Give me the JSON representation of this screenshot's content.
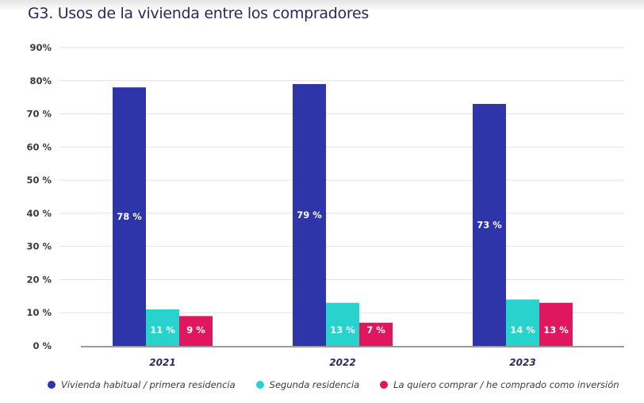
{
  "chart_data": {
    "type": "bar",
    "title": "G3. Usos de la vivienda entre los compradores",
    "xlabel": "",
    "ylabel": "",
    "ylim": [
      0,
      90
    ],
    "grid": true,
    "legend_position": "bottom",
    "categories": [
      "2021",
      "2022",
      "2023"
    ],
    "y_ticks": [
      {
        "value": 0,
        "label": "0 %"
      },
      {
        "value": 10,
        "label": "10 %"
      },
      {
        "value": 20,
        "label": "20 %"
      },
      {
        "value": 30,
        "label": "30 %"
      },
      {
        "value": 40,
        "label": "40 %"
      },
      {
        "value": 50,
        "label": "50 %"
      },
      {
        "value": 60,
        "label": "60 %"
      },
      {
        "value": 70,
        "label": "70 %"
      },
      {
        "value": 80,
        "label": "80%"
      },
      {
        "value": 90,
        "label": "90%"
      }
    ],
    "series": [
      {
        "name": "Vivienda habitual / primera residencia",
        "color": "#2e35a8",
        "values": [
          78,
          79,
          73
        ],
        "labels": [
          "78 %",
          "79 %",
          "73 %"
        ]
      },
      {
        "name": "Segunda residencia",
        "color": "#27d3cc",
        "values": [
          11,
          13,
          14
        ],
        "labels": [
          "11 %",
          "13 %",
          "14 %"
        ]
      },
      {
        "name": "La quiero comprar / he comprado como inversión",
        "color": "#e0175e",
        "values": [
          9,
          7,
          13
        ],
        "labels": [
          "9 %",
          "7 %",
          "13 %"
        ]
      }
    ]
  }
}
